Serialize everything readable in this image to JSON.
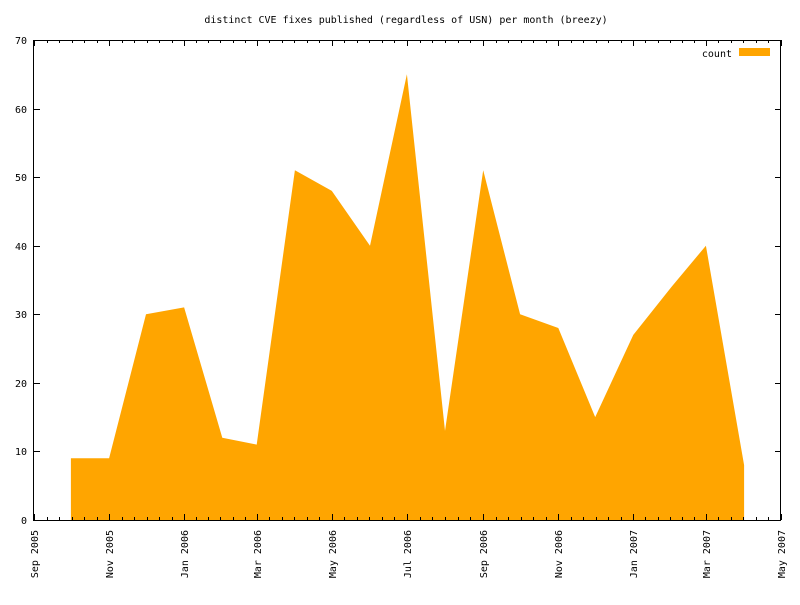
{
  "chart_data": {
    "type": "area",
    "title": "distinct CVE fixes published (regardless of USN) per month (breezy)",
    "xlabel": "",
    "ylabel": "",
    "x_axis": {
      "type": "date",
      "range": [
        "2005-09-01",
        "2007-05-01"
      ],
      "major_ticks": [
        {
          "date": "2005-09-01",
          "label": "Sep 2005"
        },
        {
          "date": "2005-11-01",
          "label": "Nov 2005"
        },
        {
          "date": "2006-01-01",
          "label": "Jan 2006"
        },
        {
          "date": "2006-03-01",
          "label": "Mar 2006"
        },
        {
          "date": "2006-05-01",
          "label": "May 2006"
        },
        {
          "date": "2006-07-01",
          "label": "Jul 2006"
        },
        {
          "date": "2006-09-01",
          "label": "Sep 2006"
        },
        {
          "date": "2006-11-01",
          "label": "Nov 2006"
        },
        {
          "date": "2007-01-01",
          "label": "Jan 2007"
        },
        {
          "date": "2007-03-01",
          "label": "Mar 2007"
        },
        {
          "date": "2007-05-01",
          "label": "May 2007"
        }
      ],
      "minor_ticks_per_interval": 6
    },
    "y_axis": {
      "range": [
        0,
        70
      ],
      "ticks": [
        0,
        10,
        20,
        30,
        40,
        50,
        60,
        70
      ]
    },
    "grid": false,
    "legend": {
      "position": "top-right"
    },
    "series": [
      {
        "name": "count",
        "color": "#FFA500",
        "points": [
          {
            "x": "2005-10-01",
            "y": 9
          },
          {
            "x": "2005-11-01",
            "y": 9
          },
          {
            "x": "2005-12-01",
            "y": 30
          },
          {
            "x": "2006-01-01",
            "y": 31
          },
          {
            "x": "2006-02-01",
            "y": 12
          },
          {
            "x": "2006-03-01",
            "y": 11
          },
          {
            "x": "2006-04-01",
            "y": 51
          },
          {
            "x": "2006-05-01",
            "y": 48
          },
          {
            "x": "2006-06-01",
            "y": 40
          },
          {
            "x": "2006-07-01",
            "y": 65
          },
          {
            "x": "2006-08-01",
            "y": 13
          },
          {
            "x": "2006-09-01",
            "y": 51
          },
          {
            "x": "2006-10-01",
            "y": 30
          },
          {
            "x": "2006-11-01",
            "y": 28
          },
          {
            "x": "2006-12-01",
            "y": 15
          },
          {
            "x": "2007-01-01",
            "y": 27
          },
          {
            "x": "2007-02-01",
            "y": 34
          },
          {
            "x": "2007-03-01",
            "y": 40
          },
          {
            "x": "2007-04-01",
            "y": 8
          }
        ]
      }
    ]
  }
}
